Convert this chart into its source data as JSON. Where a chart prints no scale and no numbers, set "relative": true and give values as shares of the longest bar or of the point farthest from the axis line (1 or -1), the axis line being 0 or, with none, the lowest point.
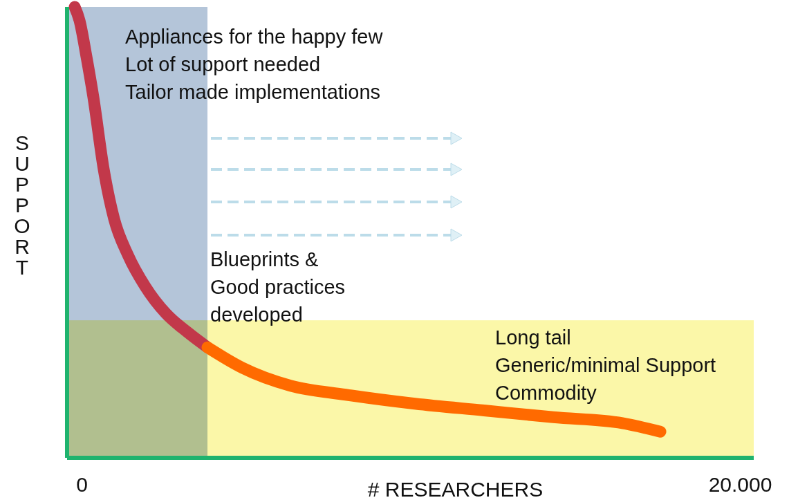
{
  "chart_data": {
    "type": "line",
    "relative": true,
    "xlabel": "# RESEARCHERS",
    "ylabel": "SUPPORT",
    "xlim": [
      -441,
      20420
    ],
    "xticks": [
      0,
      {
        "value": 20000,
        "label": "20.000"
      }
    ],
    "series": [
      {
        "color": "#c2384a",
        "x": [
          -210,
          -63,
          147,
          357,
          672,
          987,
          1407,
          1933,
          2563,
          3193,
          3824
        ],
        "values": [
          1,
          0.97,
          0.89,
          0.8,
          0.64,
          0.53,
          0.45,
          0.38,
          0.32,
          0.28,
          0.245
        ]
      },
      {
        "color": "#ff6a00",
        "x": [
          3824,
          4874,
          6345,
          8025,
          10126,
          12227,
          14328,
          16429,
          17584
        ],
        "values": [
          0.245,
          0.2,
          0.16,
          0.14,
          0.12,
          0.105,
          0.09,
          0.077,
          0.058
        ]
      }
    ],
    "bands": [
      {
        "axis": "y",
        "from": 0,
        "to": 0.305,
        "color": "#fbf7a8"
      },
      {
        "axis": "x",
        "from": -441,
        "to": 3824,
        "color": "#a7bbd3"
      }
    ],
    "annotations": [
      "Appliances for the happy few\nLot of support needed\nTailor made implementations",
      "Blueprints &\nGood practices\ndeveloped",
      "Long tail\nGeneric/minimal Support\nCommodity"
    ],
    "grid": false,
    "line_style": "solid"
  }
}
